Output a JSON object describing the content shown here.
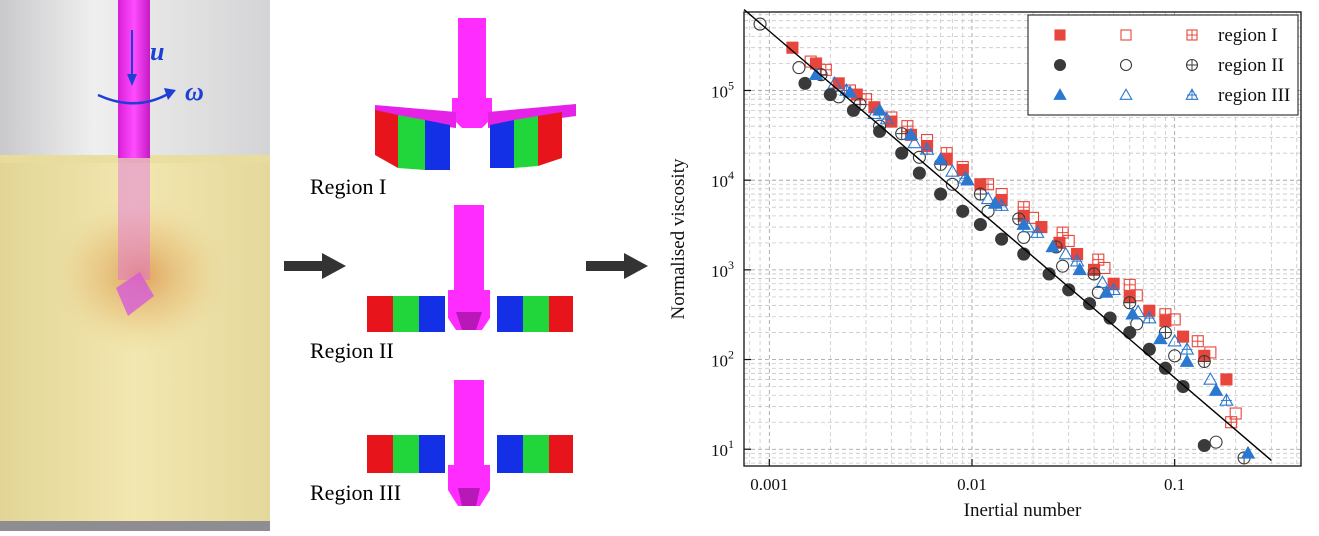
{
  "figure": {
    "left": {
      "velocity_symbol": "u",
      "rotation_symbol": "ω"
    },
    "middle": {
      "regions": [
        {
          "label": "Region I"
        },
        {
          "label": "Region II"
        },
        {
          "label": "Region III"
        }
      ],
      "block_colors": [
        "#e8141b",
        "#21d63a",
        "#1330e6"
      ],
      "vane_color": "#ff1cff"
    }
  },
  "chart_data": {
    "type": "scatter",
    "xlabel": "Inertial number",
    "ylabel": "Normalised viscosity",
    "x_scale": "log",
    "y_scale": "log",
    "xlim": [
      0.00075,
      0.42
    ],
    "ylim": [
      6.5,
      750000
    ],
    "x_ticks": [
      {
        "value": 0.001,
        "label": "0.001"
      },
      {
        "value": 0.01,
        "label": "0.01"
      },
      {
        "value": 0.1,
        "label": "0.1"
      }
    ],
    "y_ticks": [
      {
        "value": 10,
        "base": "10",
        "exp": "1"
      },
      {
        "value": 100,
        "base": "10",
        "exp": "2"
      },
      {
        "value": 1000,
        "base": "10",
        "exp": "3"
      },
      {
        "value": 10000,
        "base": "10",
        "exp": "4"
      },
      {
        "value": 100000,
        "base": "10",
        "exp": "5"
      }
    ],
    "grid": true,
    "legend_position": "top-right",
    "legend": [
      {
        "label": "region I",
        "color": "#e8453c"
      },
      {
        "label": "region II",
        "color": "#3a3a3a"
      },
      {
        "label": "region III",
        "color": "#2a78d0"
      }
    ],
    "fit_line": {
      "x": [
        0.00075,
        0.3
      ],
      "y": [
        800000,
        7.5
      ]
    },
    "series": [
      {
        "marker": "filled-square",
        "color": "#e8453c",
        "x": [
          0.0013,
          0.0017,
          0.0022,
          0.0027,
          0.0033,
          0.004,
          0.005,
          0.006,
          0.0075,
          0.009,
          0.011,
          0.014,
          0.018,
          0.022,
          0.027,
          0.033,
          0.04,
          0.05,
          0.06,
          0.075,
          0.09,
          0.11,
          0.14,
          0.18
        ],
        "y": [
          300000,
          200000,
          120000,
          90000,
          65000,
          45000,
          32000,
          24000,
          17000,
          13000,
          9000,
          6000,
          4000,
          3000,
          2000,
          1500,
          1000,
          700,
          500,
          350,
          270,
          180,
          110,
          60
        ]
      },
      {
        "marker": "open-square",
        "color": "#e8453c",
        "x": [
          0.0016,
          0.0025,
          0.004,
          0.006,
          0.009,
          0.014,
          0.02,
          0.03,
          0.045,
          0.065,
          0.1,
          0.15,
          0.2
        ],
        "y": [
          210000,
          100000,
          50000,
          28000,
          14000,
          7000,
          3800,
          2100,
          1050,
          520,
          280,
          120,
          25
        ]
      },
      {
        "marker": "crossed-square",
        "color": "#e8453c",
        "x": [
          0.0019,
          0.003,
          0.0048,
          0.0075,
          0.012,
          0.018,
          0.028,
          0.042,
          0.06,
          0.09,
          0.13,
          0.19
        ],
        "y": [
          170000,
          80000,
          40000,
          20000,
          9000,
          5000,
          2600,
          1300,
          680,
          320,
          160,
          20
        ]
      },
      {
        "marker": "filled-circle",
        "color": "#3a3a3a",
        "x": [
          0.0015,
          0.002,
          0.0026,
          0.0035,
          0.0045,
          0.0055,
          0.007,
          0.009,
          0.011,
          0.014,
          0.018,
          0.024,
          0.03,
          0.038,
          0.048,
          0.06,
          0.075,
          0.09,
          0.11,
          0.14
        ],
        "y": [
          120000,
          90000,
          60000,
          35000,
          20000,
          12000,
          7000,
          4500,
          3200,
          2200,
          1500,
          900,
          600,
          420,
          290,
          200,
          130,
          80,
          50,
          11
        ]
      },
      {
        "marker": "open-circle",
        "color": "#3a3a3a",
        "x": [
          0.0009,
          0.0014,
          0.0022,
          0.0035,
          0.0055,
          0.008,
          0.012,
          0.018,
          0.028,
          0.042,
          0.065,
          0.1,
          0.16
        ],
        "y": [
          550000,
          180000,
          85000,
          40000,
          18000,
          9000,
          4500,
          2300,
          1100,
          560,
          250,
          110,
          12
        ]
      },
      {
        "marker": "crossed-circle",
        "color": "#3a3a3a",
        "x": [
          0.0018,
          0.0028,
          0.0045,
          0.007,
          0.011,
          0.017,
          0.026,
          0.04,
          0.06,
          0.09,
          0.14,
          0.22
        ],
        "y": [
          150000,
          70000,
          33000,
          15000,
          7000,
          3700,
          1800,
          900,
          430,
          200,
          95,
          8
        ]
      },
      {
        "marker": "filled-triangle",
        "color": "#2a78d0",
        "x": [
          0.0017,
          0.0025,
          0.0035,
          0.005,
          0.007,
          0.0095,
          0.013,
          0.018,
          0.025,
          0.034,
          0.046,
          0.062,
          0.085,
          0.115,
          0.16,
          0.23
        ],
        "y": [
          150000,
          95000,
          60000,
          32000,
          17000,
          10000,
          5500,
          3200,
          1800,
          1000,
          560,
          320,
          170,
          95,
          45,
          9
        ]
      },
      {
        "marker": "open-triangle",
        "color": "#2a78d0",
        "x": [
          0.0021,
          0.0033,
          0.0052,
          0.008,
          0.012,
          0.019,
          0.029,
          0.044,
          0.066,
          0.1,
          0.15
        ],
        "y": [
          120000,
          55000,
          26000,
          12500,
          6200,
          3000,
          1500,
          720,
          340,
          160,
          60
        ]
      },
      {
        "marker": "crossed-triangle",
        "color": "#2a78d0",
        "x": [
          0.0024,
          0.0038,
          0.006,
          0.0092,
          0.014,
          0.021,
          0.033,
          0.05,
          0.075,
          0.115,
          0.18
        ],
        "y": [
          100000,
          48000,
          22000,
          10500,
          5200,
          2600,
          1250,
          600,
          290,
          130,
          35
        ]
      }
    ]
  }
}
